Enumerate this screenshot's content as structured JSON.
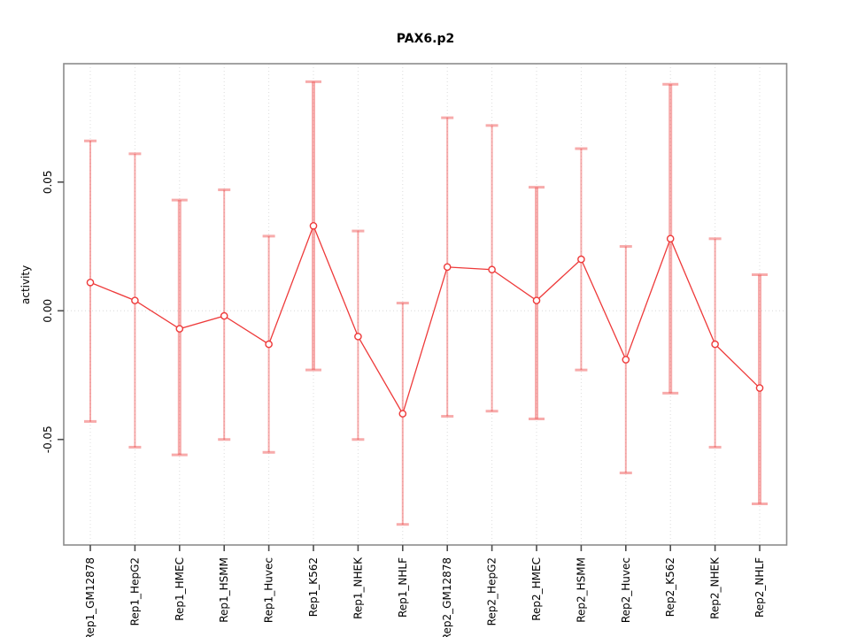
{
  "figure": {
    "title": "PAX6.p2",
    "y_axis_title": "activity"
  },
  "chart_data": {
    "type": "line",
    "title": "PAX6.p2",
    "xlabel": "",
    "ylabel": "activity",
    "ylim": [
      -0.091,
      0.096
    ],
    "yticks": [
      0.05,
      0.0,
      -0.05
    ],
    "ytick_labels": [
      "0.05",
      "0.00",
      "-0.05"
    ],
    "grid": "vertical dotted gridline per category, dotted horizontal zero line",
    "legend_position": "none",
    "marker": "open-circle",
    "categories": [
      "Rep1_GM12878",
      "Rep1_HepG2",
      "Rep1_HMEC",
      "Rep1_HSMM",
      "Rep1_Huvec",
      "Rep1_K562",
      "Rep1_NHEK",
      "Rep1_NHLF",
      "Rep2_GM12878",
      "Rep2_HepG2",
      "Rep2_HMEC",
      "Rep2_HSMM",
      "Rep2_Huvec",
      "Rep2_K562",
      "Rep2_NHEK",
      "Rep2_NHLF"
    ],
    "series": [
      {
        "name": "activity",
        "values": [
          0.011,
          0.004,
          -0.007,
          -0.002,
          -0.013,
          0.033,
          -0.01,
          -0.04,
          0.017,
          0.016,
          0.004,
          0.02,
          -0.019,
          0.028,
          -0.013,
          -0.03
        ],
        "error_high": [
          0.066,
          0.061,
          0.043,
          0.047,
          0.029,
          0.089,
          0.031,
          0.003,
          0.075,
          0.072,
          0.048,
          0.063,
          0.025,
          0.088,
          0.028,
          0.014
        ],
        "error_low": [
          -0.043,
          -0.053,
          -0.056,
          -0.05,
          -0.055,
          -0.023,
          -0.05,
          -0.083,
          -0.041,
          -0.039,
          -0.042,
          -0.023,
          -0.063,
          -0.032,
          -0.053,
          -0.075
        ],
        "thick_error_bar": [
          false,
          false,
          true,
          false,
          false,
          true,
          false,
          false,
          false,
          false,
          true,
          false,
          false,
          true,
          false,
          true
        ]
      }
    ]
  },
  "colors": {
    "line": "#ee3a3a",
    "marker_stroke": "#ee3a3a",
    "error_bar": "rgba(238,68,68,0.45)",
    "gridline": "#dcdcdc",
    "zero_line": "#d8d8d8",
    "axis_box": "#8c8c8c",
    "tick": "#4d4d4d",
    "background": "#ffffff"
  }
}
